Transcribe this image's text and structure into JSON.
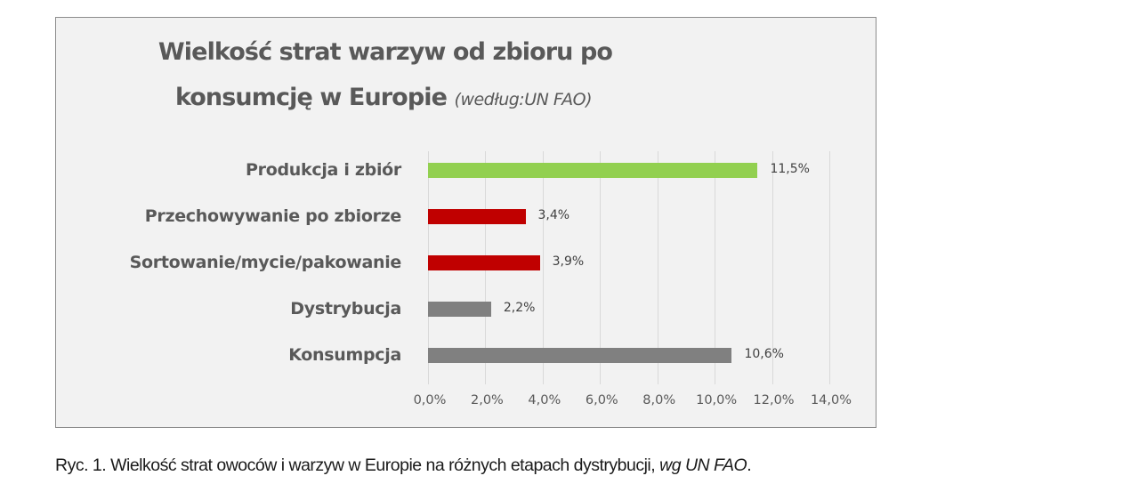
{
  "chart_data": {
    "type": "bar",
    "orientation": "horizontal",
    "title": "Wielkość strat warzyw od zbioru po konsumcję w Europie",
    "subtitle": "(według:UN FAO)",
    "title_line1": "Wielkość strat warzyw od zbioru po",
    "title_line2": "konsumcję w Europie",
    "categories": [
      "Produkcja i zbiór",
      "Przechowywanie po zbiorze",
      "Sortowanie/mycie/pakowanie",
      "Dystrybucja",
      "Konsumpcja"
    ],
    "values": [
      11.5,
      3.4,
      3.9,
      2.2,
      10.6
    ],
    "value_labels": [
      "11,5%",
      "3,4%",
      "3,9%",
      "2,2%",
      "10,6%"
    ],
    "bar_colors": [
      "#92d050",
      "#c00000",
      "#c00000",
      "#808080",
      "#808080"
    ],
    "xlabel": "",
    "ylabel": "",
    "xlim": [
      0,
      14
    ],
    "x_ticks": [
      "0,0%",
      "2,0%",
      "4,0%",
      "6,0%",
      "8,0%",
      "10,0%",
      "12,0%",
      "14,0%"
    ],
    "grid": true,
    "legend": "none"
  },
  "caption": {
    "main": "Ryc. 1. Wielkość strat owoców i warzyw w Europie na różnych etapach dystrybucji, ",
    "italic": "wg UN FAO",
    "end": "."
  }
}
